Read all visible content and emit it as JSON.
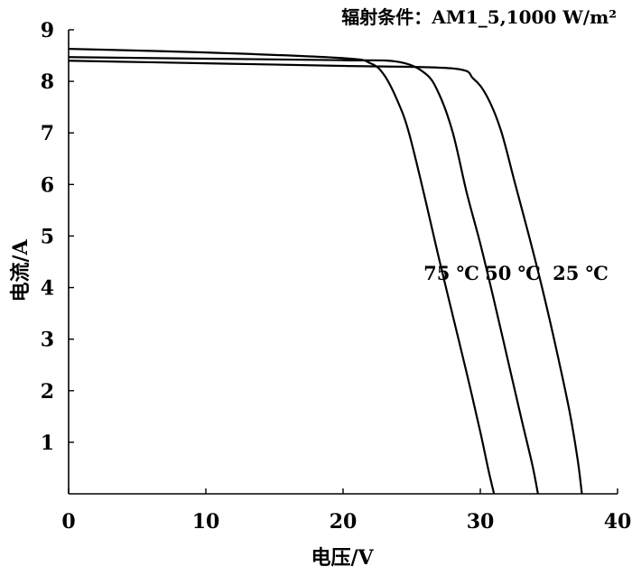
{
  "chart_data": {
    "type": "line",
    "title": "辐射条件：AM1_5,1000 W/m²",
    "xlabel": "电压/V",
    "ylabel": "电流/A",
    "xlim": [
      0,
      40
    ],
    "ylim": [
      0,
      9
    ],
    "x_ticks": [
      "0",
      "10",
      "20",
      "30",
      "40"
    ],
    "y_ticks": [
      "1",
      "2",
      "3",
      "4",
      "5",
      "6",
      "7",
      "8",
      "9"
    ],
    "grid": false,
    "series": [
      {
        "name": "75 ℃",
        "points": [
          [
            0,
            8.63
          ],
          [
            10,
            8.56
          ],
          [
            20,
            8.45
          ],
          [
            22,
            8.35
          ],
          [
            23,
            8.12
          ],
          [
            24,
            7.6
          ],
          [
            24.8,
            7.0
          ],
          [
            26,
            5.7
          ],
          [
            27,
            4.55
          ],
          [
            28,
            3.45
          ],
          [
            29,
            2.35
          ],
          [
            30,
            1.2
          ],
          [
            30.6,
            0.45
          ],
          [
            31.0,
            0
          ]
        ]
      },
      {
        "name": "50 ℃",
        "points": [
          [
            0,
            8.47
          ],
          [
            10,
            8.44
          ],
          [
            20,
            8.41
          ],
          [
            24,
            8.38
          ],
          [
            26,
            8.15
          ],
          [
            27,
            7.75
          ],
          [
            28,
            7.0
          ],
          [
            29,
            5.85
          ],
          [
            30,
            4.85
          ],
          [
            31,
            3.75
          ],
          [
            32,
            2.6
          ],
          [
            33,
            1.45
          ],
          [
            33.8,
            0.55
          ],
          [
            34.2,
            0
          ]
        ]
      },
      {
        "name": "25 ℃",
        "points": [
          [
            0,
            8.4
          ],
          [
            10,
            8.35
          ],
          [
            20,
            8.3
          ],
          [
            28,
            8.25
          ],
          [
            29.5,
            8.05
          ],
          [
            30.5,
            7.7
          ],
          [
            31.5,
            7.05
          ],
          [
            32.5,
            6.05
          ],
          [
            33.5,
            5.05
          ],
          [
            34.5,
            4.0
          ],
          [
            35.5,
            2.85
          ],
          [
            36.5,
            1.6
          ],
          [
            37.1,
            0.65
          ],
          [
            37.4,
            0
          ]
        ]
      }
    ],
    "annotations": [
      "75 ℃",
      "50 ℃",
      "25 ℃"
    ]
  }
}
